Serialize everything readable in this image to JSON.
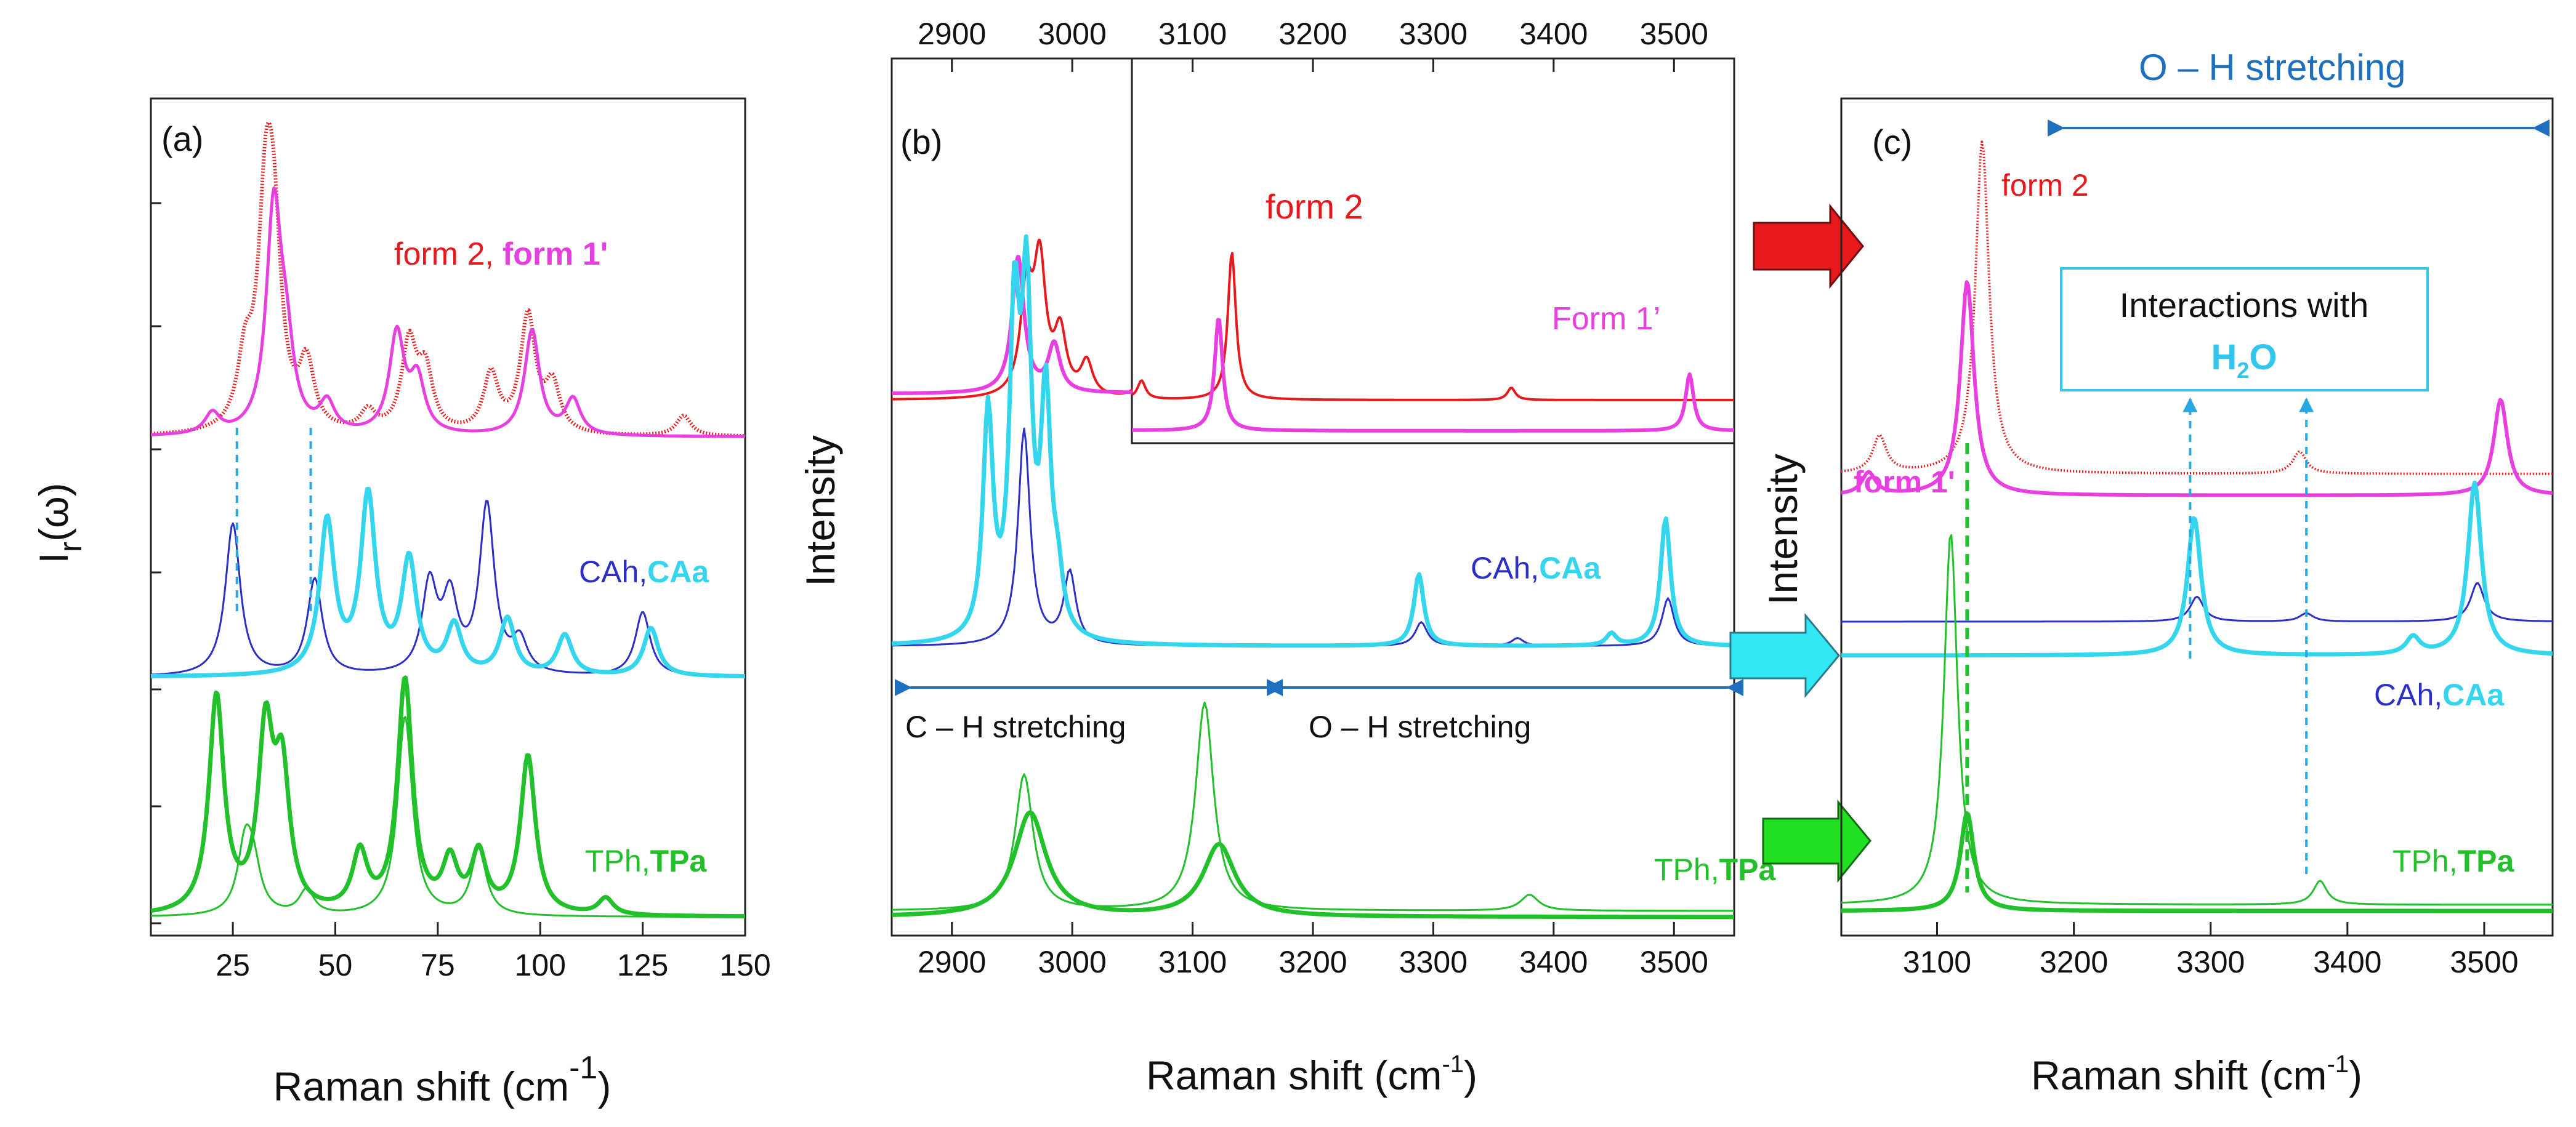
{
  "figure": {
    "panels": [
      "(a)",
      "(b)",
      "(c)"
    ]
  },
  "chart_data": [
    {
      "type": "line",
      "panel": "(a)",
      "xlabel": "Raman shift (cm",
      "xlabel_sup": "-1",
      "xlabel_close": ")",
      "ylabel": "I",
      "ylabel_sub": "r",
      "ylabel_tail": "(ω)",
      "xlim": [
        5,
        150
      ],
      "xticks": [
        25,
        50,
        75,
        100,
        125,
        150
      ],
      "xtick_labels": [
        "25",
        "50",
        "75",
        "100",
        "125",
        "150"
      ],
      "labels": {
        "forms_a": "form 2,",
        "forms_b": "form 1'",
        "ca_a": "CAh,",
        "ca_b": "CAa",
        "tp_a": "TPh,",
        "tp_b": "TPa"
      },
      "series": [
        {
          "name": "form 2",
          "color": "#e8191c",
          "peaks": [
            [
              28,
              1.1
            ],
            [
              33,
              3.4
            ],
            [
              35,
              2.8
            ],
            [
              43,
              1.1
            ],
            [
              58,
              0.35
            ],
            [
              68,
              1.5
            ],
            [
              72,
              1.0
            ],
            [
              88,
              1.0
            ],
            [
              97,
              2.0
            ],
            [
              103,
              0.8
            ],
            [
              135,
              0.35
            ]
          ]
        },
        {
          "name": "form 1'",
          "color": "#e83fe0",
          "peaks": [
            [
              20,
              0.35
            ],
            [
              35,
              3.8
            ],
            [
              38,
              1.2
            ],
            [
              48,
              0.5
            ],
            [
              65,
              1.7
            ],
            [
              70,
              0.9
            ],
            [
              98,
              1.8
            ],
            [
              108,
              0.6
            ]
          ]
        },
        {
          "name": "CAh",
          "color": "#2b2fc8",
          "peaks": [
            [
              25,
              1.9
            ],
            [
              45,
              1.2
            ],
            [
              73,
              1.1
            ],
            [
              78,
              0.9
            ],
            [
              87,
              2.1
            ],
            [
              95,
              0.4
            ],
            [
              125,
              0.8
            ]
          ]
        },
        {
          "name": "CAa",
          "color": "#33d6ec",
          "peaks": [
            [
              48,
              1.9
            ],
            [
              58,
              2.2
            ],
            [
              68,
              1.4
            ],
            [
              79,
              0.6
            ],
            [
              92,
              0.7
            ],
            [
              106,
              0.5
            ],
            [
              127,
              0.6
            ]
          ]
        },
        {
          "name": "TPh",
          "color": "#22c02a",
          "peaks": [
            [
              28,
              0.8
            ],
            [
              30,
              0.5
            ],
            [
              43,
              0.3
            ],
            [
              67,
              2.4
            ],
            [
              85,
              0.8
            ]
          ]
        },
        {
          "name": "TPa",
          "color": "#22c02a",
          "peaks": [
            [
              21,
              2.6
            ],
            [
              33,
              2.1
            ],
            [
              37,
              1.6
            ],
            [
              56,
              0.7
            ],
            [
              67,
              2.8
            ],
            [
              78,
              0.6
            ],
            [
              85,
              0.7
            ],
            [
              97,
              1.9
            ],
            [
              116,
              0.2
            ]
          ]
        }
      ],
      "annotations": {
        "dashed_guides_cm1": [
          26,
          44
        ]
      }
    },
    {
      "type": "line",
      "panel": "(b)",
      "xlabel": "Raman shift (cm",
      "xlabel_sup": "-1",
      "xlabel_close": ")",
      "ylabel": "Intensity",
      "xlim": [
        2850,
        3550
      ],
      "xticks": [
        2900,
        3000,
        3100,
        3200,
        3300,
        3400,
        3500
      ],
      "xtick_labels": [
        "2900",
        "3000",
        "3100",
        "3200",
        "3300",
        "3400",
        "3500"
      ],
      "top_xticks": [
        2900,
        3000,
        3100,
        3200,
        3300,
        3400,
        3500
      ],
      "labels": {
        "form2": "form 2",
        "form1": "Form 1’",
        "ca_a": "CAh,",
        "ca_b": "CAa",
        "tp_a": "TPh,",
        "tp_b": "TPa",
        "ch": "C – H stretching",
        "oh": "O – H stretching"
      },
      "inset": {
        "xlim": [
          3050,
          3550
        ],
        "series": [
          "form 2",
          "Form 1’"
        ]
      },
      "series": [
        {
          "name": "form 2",
          "color": "#e8191c",
          "peaks": [
            [
              2962,
              1.5
            ],
            [
              2973,
              1.9
            ],
            [
              2990,
              0.9
            ],
            [
              3012,
              0.5
            ],
            [
              3058,
              0.3
            ],
            [
              3133,
              2.4
            ],
            [
              3365,
              0.2
            ]
          ]
        },
        {
          "name": "Form 1'",
          "color": "#e83fe0",
          "peaks": [
            [
              2955,
              2.0
            ],
            [
              2985,
              0.7
            ],
            [
              3122,
              1.6
            ],
            [
              3513,
              0.8
            ]
          ]
        },
        {
          "name": "CAh",
          "color": "#2b2fc8",
          "peaks": [
            [
              2960,
              2.7
            ],
            [
              2998,
              0.9
            ],
            [
              3290,
              0.3
            ],
            [
              3370,
              0.1
            ],
            [
              3495,
              0.6
            ]
          ]
        },
        {
          "name": "CAa",
          "color": "#33d6ec",
          "peaks": [
            [
              2930,
              2.8
            ],
            [
              2952,
              3.8
            ],
            [
              2962,
              4.0
            ],
            [
              2978,
              2.9
            ],
            [
              2988,
              0.6
            ],
            [
              3288,
              0.9
            ],
            [
              3448,
              0.15
            ],
            [
              3493,
              1.6
            ]
          ]
        },
        {
          "name": "TPh",
          "color": "#22c02a",
          "peaks": [
            [
              2960,
              1.7
            ],
            [
              3110,
              2.6
            ],
            [
              3380,
              0.2
            ]
          ]
        },
        {
          "name": "TPa",
          "color": "#22c02a",
          "peaks": [
            [
              2965,
              1.3
            ],
            [
              3122,
              0.9
            ]
          ]
        }
      ]
    },
    {
      "type": "line",
      "panel": "(c)",
      "xlabel": "Raman shift (cm",
      "xlabel_sup": "-1",
      "xlabel_close": ")",
      "ylabel": "Intensity",
      "xlim": [
        3030,
        3550
      ],
      "xticks": [
        3100,
        3200,
        3300,
        3400,
        3500
      ],
      "xtick_labels": [
        "3100",
        "3200",
        "3300",
        "3400",
        "3500"
      ],
      "labels": {
        "form2": "form 2",
        "form1": "form 1'",
        "ca_a": "CAh,",
        "ca_b": "CAa",
        "tp_a": "TPh,",
        "tp_b": "TPa",
        "oh": "O – H stretching",
        "box1": "Interactions with",
        "box2": "H",
        "box2_sub": "2",
        "box2_tail": "O"
      },
      "series": [
        {
          "name": "form 2",
          "color": "#e8191c",
          "peaks": [
            [
              3058,
              0.5
            ],
            [
              3133,
              4.5
            ],
            [
              3365,
              0.3
            ]
          ]
        },
        {
          "name": "form 1'",
          "color": "#e83fe0",
          "peaks": [
            [
              3050,
              0.3
            ],
            [
              3122,
              2.9
            ],
            [
              3512,
              1.3
            ]
          ]
        },
        {
          "name": "CAh",
          "color": "#2b2fc8",
          "peaks": [
            [
              3290,
              0.45
            ],
            [
              3370,
              0.15
            ],
            [
              3495,
              0.7
            ]
          ]
        },
        {
          "name": "CAa",
          "color": "#33d6ec",
          "peaks": [
            [
              3288,
              1.6
            ],
            [
              3448,
              0.2
            ],
            [
              3493,
              2.0
            ]
          ]
        },
        {
          "name": "TPh",
          "color": "#22c02a",
          "peaks": [
            [
              3110,
              3.9
            ],
            [
              3380,
              0.25
            ]
          ]
        },
        {
          "name": "TPa",
          "color": "#22c02a",
          "peaks": [
            [
              3122,
              1.1
            ]
          ]
        }
      ],
      "annotations": {
        "dashed_guides_cm1": [
          3122,
          3285,
          3370
        ]
      }
    }
  ],
  "colors": {
    "red": "#e8191c",
    "magenta": "#e83fe0",
    "blue": "#2b2fc8",
    "cyan": "#33d6ec",
    "green": "#22c02a",
    "arrowBlue": "#1f6fc0",
    "dashCyan": "#28a8e0"
  }
}
